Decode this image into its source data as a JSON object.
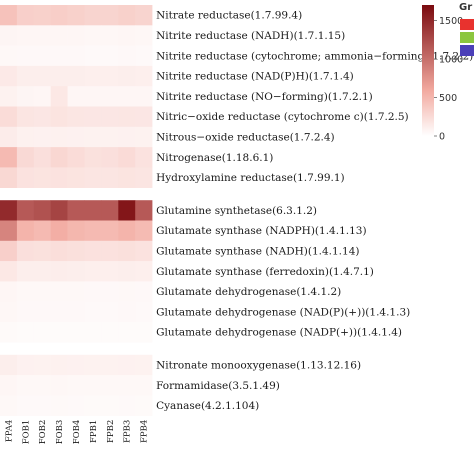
{
  "chart_data": {
    "type": "heatmap",
    "columns": [
      "FPA4",
      "FOB1",
      "FOB2",
      "FOB3",
      "FOB4",
      "FPB1",
      "FPB2",
      "FPB3",
      "FPB4"
    ],
    "groups": [
      {
        "rows": [
          {
            "label": "Nitrate reductase(1.7.99.4)",
            "values": [
              420,
              330,
              320,
              340,
              320,
              300,
              300,
              320,
              300
            ]
          },
          {
            "label": "Nitrite reductase (NADH)(1.7.1.15)",
            "values": [
              70,
              60,
              60,
              60,
              60,
              55,
              55,
              60,
              55
            ]
          },
          {
            "label": "Nitrite reductase (cytochrome; ammonia−forming)(1.7.2.2)",
            "values": [
              50,
              45,
              45,
              45,
              45,
              40,
              40,
              45,
              40
            ]
          },
          {
            "label": "Nitrite reductase (NAD(P)H)(1.7.1.4)",
            "values": [
              150,
              120,
              115,
              120,
              115,
              110,
              110,
              115,
              110
            ]
          },
          {
            "label": "Nitrite reductase (NO−forming)(1.7.2.1)",
            "values": [
              90,
              70,
              60,
              160,
              60,
              60,
              60,
              65,
              60
            ]
          },
          {
            "label": "Nitric−oxide reductase (cytochrome c)(1.7.2.5)",
            "values": [
              240,
              180,
              170,
              190,
              175,
              170,
              170,
              175,
              170
            ]
          },
          {
            "label": "Nitrous−oxide reductase(1.7.2.4)",
            "values": [
              130,
              100,
              95,
              100,
              95,
              90,
              90,
              95,
              90
            ]
          },
          {
            "label": "Nitrogenase(1.18.6.1)",
            "values": [
              480,
              260,
              220,
              280,
              240,
              210,
              220,
              250,
              200
            ]
          },
          {
            "label": "Hydroxylamine reductase(1.7.99.1)",
            "values": [
              270,
              200,
              190,
              200,
              190,
              180,
              180,
              190,
              180
            ]
          }
        ]
      },
      {
        "rows": [
          {
            "label": "Glutamine synthetase(6.3.1.2)",
            "values": [
              1480,
              1150,
              1200,
              1300,
              1150,
              1150,
              1150,
              1620,
              1150
            ]
          },
          {
            "label": "Glutamate synthase (NADPH)(1.4.1.13)",
            "values": [
              850,
              520,
              480,
              560,
              500,
              480,
              480,
              520,
              470
            ]
          },
          {
            "label": "Glutamate synthase (NADH)(1.4.1.14)",
            "values": [
              330,
              220,
              210,
              230,
              215,
              205,
              205,
              215,
              200
            ]
          },
          {
            "label": "Glutamate synthase (ferredoxin)(1.4.7.1)",
            "values": [
              160,
              120,
              115,
              125,
              115,
              110,
              110,
              115,
              110
            ]
          },
          {
            "label": "Glutamate dehydrogenase(1.4.1.2)",
            "values": [
              60,
              50,
              50,
              50,
              50,
              45,
              45,
              50,
              45
            ]
          },
          {
            "label": "Glutamate dehydrogenase (NAD(P)(+))(1.4.1.3)",
            "values": [
              55,
              45,
              45,
              45,
              45,
              40,
              40,
              45,
              40
            ]
          },
          {
            "label": "Glutamate dehydrogenase (NADP(+))(1.4.1.4)",
            "values": [
              35,
              30,
              30,
              30,
              30,
              28,
              28,
              30,
              28
            ]
          }
        ]
      },
      {
        "rows": [
          {
            "label": "Nitronate monooxygenase(1.13.12.16)",
            "values": [
              120,
              95,
              90,
              100,
              95,
              90,
              90,
              95,
              90
            ]
          },
          {
            "label": "Formamidase(3.5.1.49)",
            "values": [
              60,
              50,
              50,
              55,
              50,
              48,
              48,
              50,
              48
            ]
          },
          {
            "label": "Cyanase(4.2.1.104)",
            "values": [
              50,
              40,
              40,
              42,
              40,
              38,
              38,
              40,
              38
            ]
          }
        ]
      }
    ],
    "colorscale": {
      "min": 0,
      "max": 1700,
      "low_color": "#ffffff",
      "mid_color": "#f2a99f",
      "high_color": "#7a0a0f",
      "ticks": [
        0,
        500,
        1000,
        1500
      ],
      "tick_labels": [
        "0",
        "500",
        "1000",
        "1500"
      ]
    },
    "legend": {
      "title": "Gr",
      "items": [
        {
          "color": "#e8322e"
        },
        {
          "color": "#8bc63f"
        },
        {
          "color": "#4b3fb8"
        }
      ]
    }
  }
}
